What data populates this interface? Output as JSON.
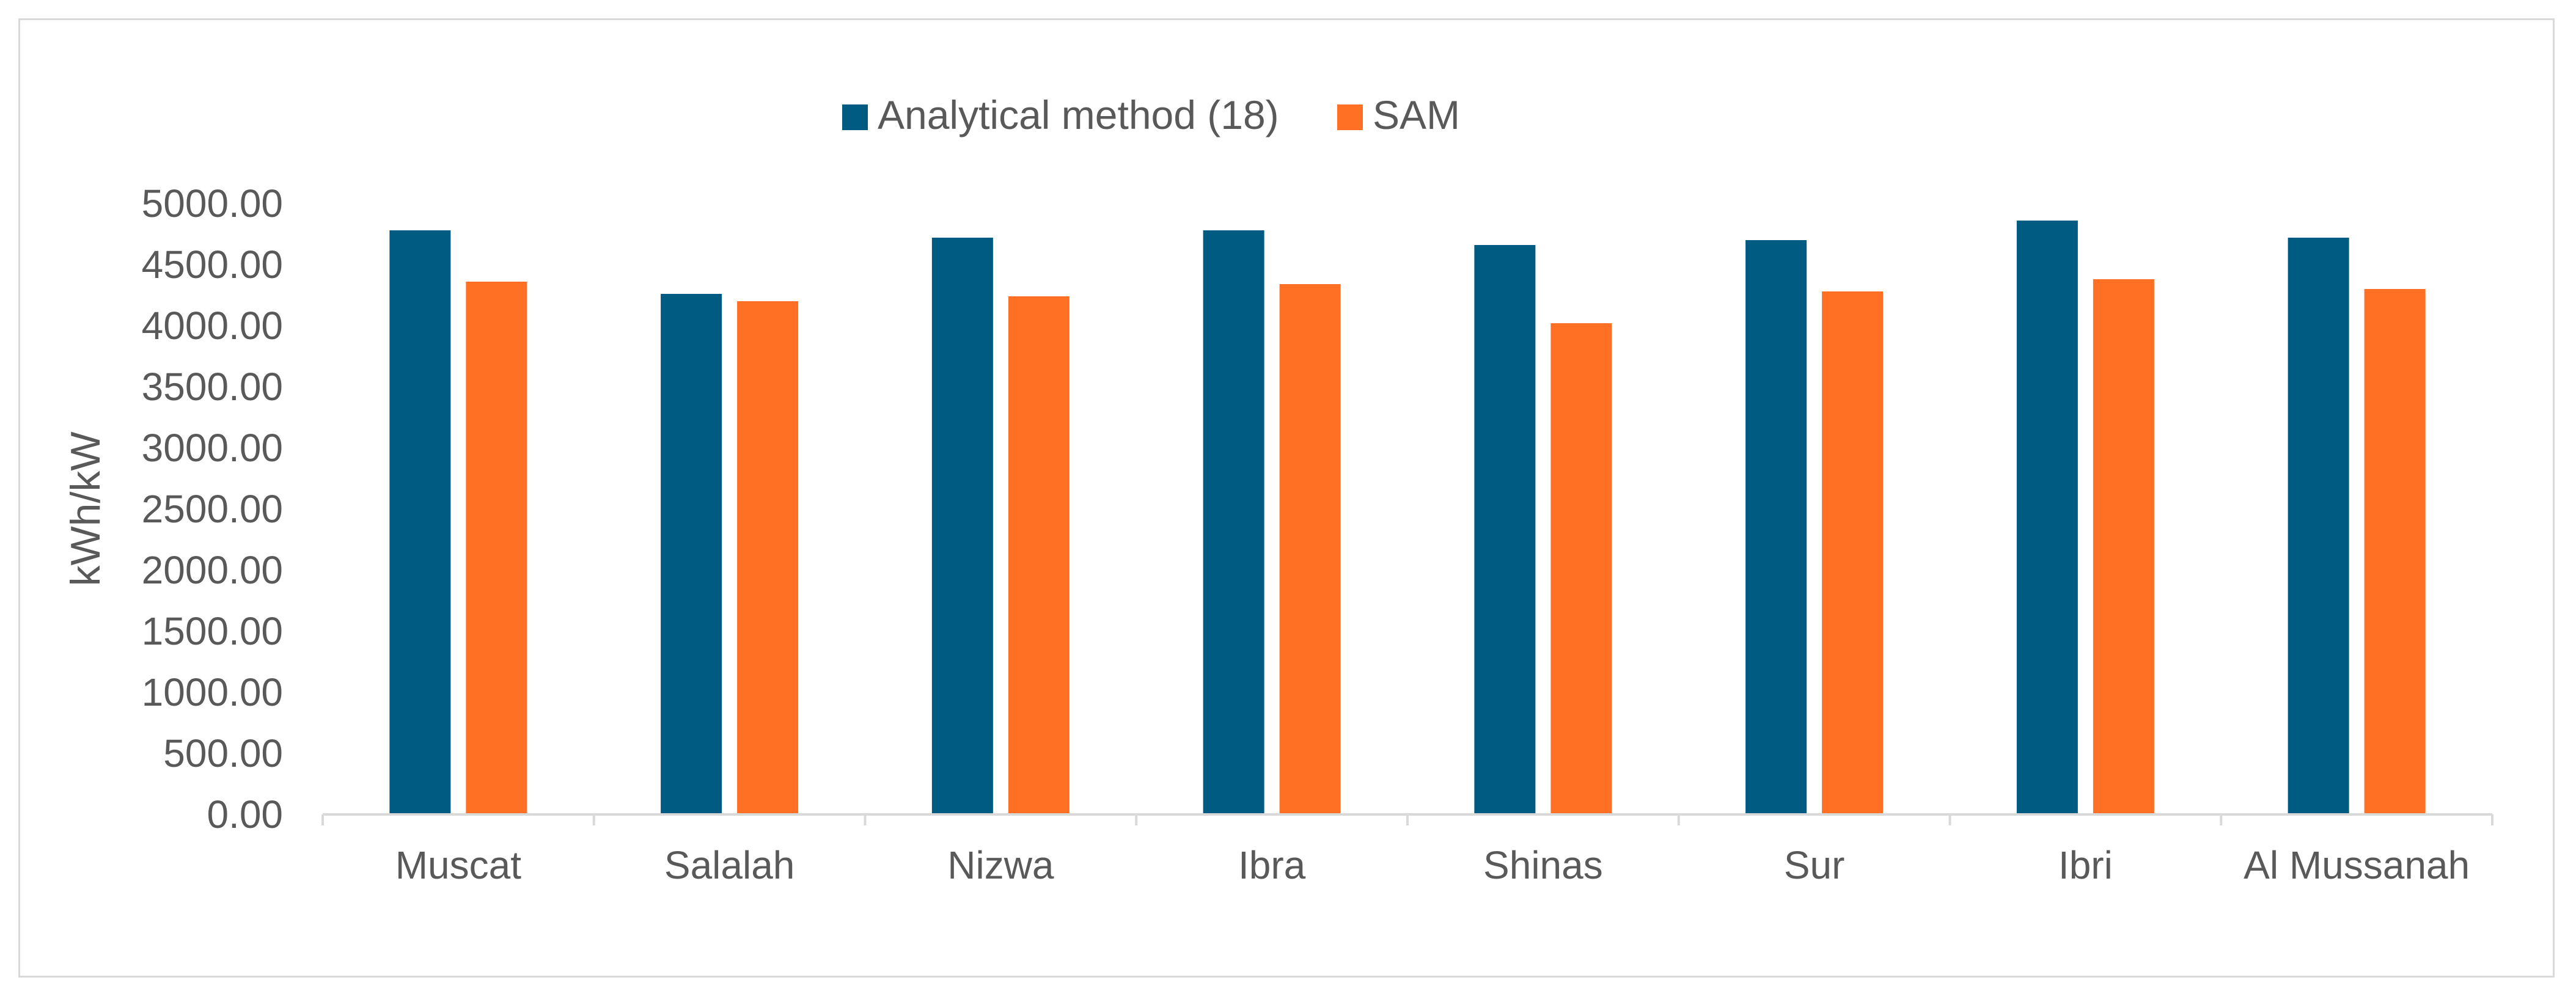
{
  "chart_data": {
    "type": "bar",
    "title": "",
    "xlabel": "",
    "ylabel": "kWh/kW",
    "ylim": [
      0,
      5000
    ],
    "yticks": [
      "0.00",
      "500.00",
      "1000.00",
      "1500.00",
      "2000.00",
      "2500.00",
      "3000.00",
      "3500.00",
      "4000.00",
      "4500.00",
      "5000.00"
    ],
    "categories": [
      "Muscat",
      "Salalah",
      "Nizwa",
      "Ibra",
      "Shinas",
      "Sur",
      "Ibri",
      "Al Mussanah"
    ],
    "series": [
      {
        "name": "Analytical method (18)",
        "color": "#005b82",
        "values": [
          4780,
          4260,
          4720,
          4780,
          4660,
          4700,
          4860,
          4720
        ]
      },
      {
        "name": "SAM",
        "color": "#ff6f24",
        "values": [
          4360,
          4200,
          4240,
          4340,
          4020,
          4280,
          4380,
          4300
        ]
      }
    ],
    "legend_position": "top-center",
    "grid": false
  }
}
